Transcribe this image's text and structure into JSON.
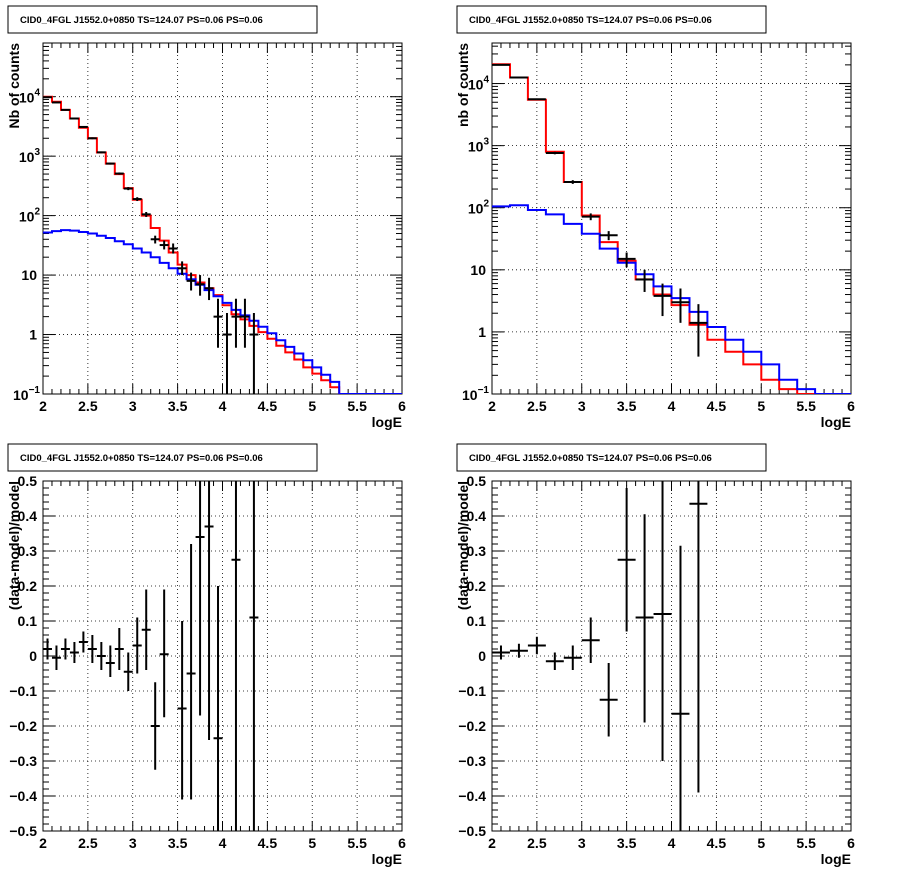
{
  "chart_data": [
    {
      "type": "histogram",
      "title": "CID0_4FGL J1552.0+0850 TS=124.07 PS=0.06 PS=0.06",
      "xlabel": "logE",
      "ylabel": "Nb of counts",
      "log_y": true,
      "xlim": [
        2,
        6
      ],
      "ylim": [
        0.1,
        80000
      ],
      "grid": true,
      "x_ticks": [
        "2",
        "2.5",
        "3",
        "3.5",
        "4",
        "4.5",
        "5",
        "5.5",
        "6"
      ],
      "y_ticks": [
        {
          "v": 0.1,
          "base": "10",
          "exp": "−1"
        },
        {
          "v": 1,
          "text": "1"
        },
        {
          "v": 10,
          "text": "10"
        },
        {
          "v": 100,
          "base": "10",
          "exp": "2"
        },
        {
          "v": 1000,
          "base": "10",
          "exp": "3"
        },
        {
          "v": 10000,
          "base": "10",
          "exp": "4"
        }
      ],
      "bin_width": 0.1,
      "series": [
        {
          "color": "#ff0000",
          "x0": 2.0,
          "values": [
            10000,
            8200,
            6000,
            4300,
            3000,
            2000,
            1150,
            750,
            500,
            290,
            185,
            100,
            62,
            38,
            24,
            15,
            10,
            7.5,
            6,
            4.6,
            3.1,
            2.2,
            1.8,
            1.4,
            1.1,
            0.85,
            0.65,
            0.5,
            0.38,
            0.28,
            0.22,
            0.17,
            0.13,
            0.1,
            0.1,
            0.1,
            0.1,
            0.1,
            0.1,
            0.1
          ]
        },
        {
          "color": "#0000ff",
          "x0": 2.0,
          "values": [
            52,
            55,
            57,
            56,
            53,
            50,
            46,
            42,
            37,
            33,
            28,
            24,
            20,
            16,
            13,
            10.5,
            8.5,
            6.9,
            5.6,
            4.4,
            3.4,
            2.6,
            2.1,
            1.7,
            1.35,
            1.05,
            0.8,
            0.62,
            0.48,
            0.37,
            0.28,
            0.21,
            0.16,
            0.1,
            0.1,
            0.1,
            0.1,
            0.1,
            0.1,
            0.1
          ]
        }
      ],
      "points": [
        {
          "x": 2.05,
          "y": 9800,
          "ylo": 9600,
          "yhi": 10000
        },
        {
          "x": 2.15,
          "y": 8000,
          "ylo": 7850,
          "yhi": 8150
        },
        {
          "x": 2.25,
          "y": 6000,
          "ylo": 5850,
          "yhi": 6150
        },
        {
          "x": 2.35,
          "y": 4300,
          "ylo": 4200,
          "yhi": 4400
        },
        {
          "x": 2.45,
          "y": 3100,
          "ylo": 3000,
          "yhi": 3200
        },
        {
          "x": 2.55,
          "y": 2000,
          "ylo": 1930,
          "yhi": 2070
        },
        {
          "x": 2.65,
          "y": 1160,
          "ylo": 1120,
          "yhi": 1200
        },
        {
          "x": 2.75,
          "y": 750,
          "ylo": 722,
          "yhi": 778
        },
        {
          "x": 2.85,
          "y": 510,
          "ylo": 488,
          "yhi": 532
        },
        {
          "x": 2.95,
          "y": 285,
          "ylo": 268,
          "yhi": 302
        },
        {
          "x": 3.05,
          "y": 190,
          "ylo": 176,
          "yhi": 204
        },
        {
          "x": 3.15,
          "y": 105,
          "ylo": 95,
          "yhi": 115
        },
        {
          "x": 3.25,
          "y": 40,
          "ylo": 34,
          "yhi": 46
        },
        {
          "x": 3.35,
          "y": 32,
          "ylo": 27,
          "yhi": 38
        },
        {
          "x": 3.45,
          "y": 28,
          "ylo": 23,
          "yhi": 34
        },
        {
          "x": 3.55,
          "y": 13,
          "ylo": 10,
          "yhi": 17
        },
        {
          "x": 3.65,
          "y": 8,
          "ylo": 5.5,
          "yhi": 11
        },
        {
          "x": 3.75,
          "y": 7,
          "ylo": 4.5,
          "yhi": 10
        },
        {
          "x": 3.85,
          "y": 6,
          "ylo": 3.8,
          "yhi": 9
        },
        {
          "x": 3.95,
          "y": 2,
          "ylo": 0.6,
          "yhi": 4
        },
        {
          "x": 4.05,
          "y": 1,
          "ylo": 0.1,
          "yhi": 2.3
        },
        {
          "x": 4.15,
          "y": 2,
          "ylo": 0.6,
          "yhi": 4
        },
        {
          "x": 4.25,
          "y": 2,
          "ylo": 0.6,
          "yhi": 4
        },
        {
          "x": 4.35,
          "y": 1,
          "ylo": 0.1,
          "yhi": 2.3
        }
      ]
    },
    {
      "type": "histogram",
      "title": "CID0_4FGL J1552.0+0850 TS=124.07 PS=0.06 PS=0.06",
      "xlabel": "logE",
      "ylabel": "nb of counts",
      "log_y": true,
      "xlim": [
        2,
        6
      ],
      "ylim": [
        0.1,
        45000
      ],
      "grid": true,
      "x_ticks": [
        "2",
        "2.5",
        "3",
        "3.5",
        "4",
        "4.5",
        "5",
        "5.5",
        "6"
      ],
      "y_ticks": [
        {
          "v": 0.1,
          "base": "10",
          "exp": "−1"
        },
        {
          "v": 1,
          "text": "1"
        },
        {
          "v": 10,
          "text": "10"
        },
        {
          "v": 100,
          "base": "10",
          "exp": "2"
        },
        {
          "v": 1000,
          "base": "10",
          "exp": "3"
        },
        {
          "v": 10000,
          "base": "10",
          "exp": "4"
        }
      ],
      "bin_width": 0.2,
      "series": [
        {
          "color": "#ff0000",
          "x0": 2.0,
          "values": [
            20500,
            12500,
            5500,
            800,
            260,
            75,
            28,
            14,
            7,
            4,
            2.7,
            1.3,
            0.75,
            0.48,
            0.3,
            0.17,
            0.12,
            0.1,
            0.1,
            0.1
          ]
        },
        {
          "color": "#0000ff",
          "x0": 2.0,
          "values": [
            105,
            110,
            92,
            78,
            55,
            38,
            22,
            13,
            8.5,
            5.4,
            3.5,
            2.1,
            1.2,
            0.75,
            0.48,
            0.3,
            0.17,
            0.12,
            0.1,
            0.1
          ]
        }
      ],
      "points": [
        {
          "x": 2.1,
          "y": 20000,
          "ylo": 19800,
          "yhi": 20200
        },
        {
          "x": 2.3,
          "y": 12500,
          "ylo": 12350,
          "yhi": 12650
        },
        {
          "x": 2.5,
          "y": 5600,
          "ylo": 5480,
          "yhi": 5720
        },
        {
          "x": 2.7,
          "y": 760,
          "ylo": 725,
          "yhi": 795
        },
        {
          "x": 2.9,
          "y": 260,
          "ylo": 242,
          "yhi": 278
        },
        {
          "x": 3.1,
          "y": 72,
          "ylo": 63,
          "yhi": 81
        },
        {
          "x": 3.3,
          "y": 36,
          "ylo": 30,
          "yhi": 42
        },
        {
          "x": 3.5,
          "y": 15,
          "ylo": 11,
          "yhi": 19
        },
        {
          "x": 3.7,
          "y": 7,
          "ylo": 4.4,
          "yhi": 10
        },
        {
          "x": 3.9,
          "y": 3.8,
          "ylo": 1.8,
          "yhi": 6
        },
        {
          "x": 4.1,
          "y": 3,
          "ylo": 1.4,
          "yhi": 5
        },
        {
          "x": 4.3,
          "y": 1.4,
          "ylo": 0.4,
          "yhi": 2.8
        }
      ]
    },
    {
      "type": "scatter",
      "title": "CID0_4FGL J1552.0+0850 TS=124.07 PS=0.06 PS=0.06",
      "xlabel": "logE",
      "ylabel": "(data-model)/model",
      "log_y": false,
      "xlim": [
        2,
        6
      ],
      "ylim": [
        -0.5,
        0.5
      ],
      "grid": true,
      "x_ticks": [
        "2",
        "2.5",
        "3",
        "3.5",
        "4",
        "4.5",
        "5",
        "5.5",
        "6"
      ],
      "y_ticks": [
        {
          "v": -0.5,
          "text": "−0.5"
        },
        {
          "v": -0.4,
          "text": "−0.4"
        },
        {
          "v": -0.3,
          "text": "−0.3"
        },
        {
          "v": -0.2,
          "text": "−0.2"
        },
        {
          "v": -0.1,
          "text": "−0.1"
        },
        {
          "v": 0,
          "text": "0"
        },
        {
          "v": 0.1,
          "text": "0.1"
        },
        {
          "v": 0.2,
          "text": "0.2"
        },
        {
          "v": 0.3,
          "text": "0.3"
        },
        {
          "v": 0.4,
          "text": "0.4"
        },
        {
          "v": 0.5,
          "text": "0.5"
        }
      ],
      "xerr": 0.05,
      "points": [
        {
          "x": 2.05,
          "y": 0.02,
          "ylo": -0.01,
          "yhi": 0.05
        },
        {
          "x": 2.15,
          "y": -0.005,
          "ylo": -0.04,
          "yhi": 0.03
        },
        {
          "x": 2.25,
          "y": 0.02,
          "ylo": -0.01,
          "yhi": 0.05
        },
        {
          "x": 2.35,
          "y": 0.01,
          "ylo": -0.02,
          "yhi": 0.04
        },
        {
          "x": 2.45,
          "y": 0.04,
          "ylo": 0.01,
          "yhi": 0.07
        },
        {
          "x": 2.55,
          "y": 0.02,
          "ylo": -0.02,
          "yhi": 0.06
        },
        {
          "x": 2.65,
          "y": 0.0,
          "ylo": -0.04,
          "yhi": 0.04
        },
        {
          "x": 2.75,
          "y": -0.02,
          "ylo": -0.06,
          "yhi": 0.03
        },
        {
          "x": 2.85,
          "y": 0.02,
          "ylo": -0.04,
          "yhi": 0.08
        },
        {
          "x": 2.95,
          "y": -0.045,
          "ylo": -0.1,
          "yhi": 0.01
        },
        {
          "x": 3.05,
          "y": 0.03,
          "ylo": -0.05,
          "yhi": 0.11
        },
        {
          "x": 3.15,
          "y": 0.075,
          "ylo": -0.04,
          "yhi": 0.19
        },
        {
          "x": 3.25,
          "y": -0.2,
          "ylo": -0.325,
          "yhi": -0.075
        },
        {
          "x": 3.35,
          "y": 0.005,
          "ylo": -0.175,
          "yhi": 0.19
        },
        {
          "x": 3.55,
          "y": -0.15,
          "ylo": -0.41,
          "yhi": 0.1
        },
        {
          "x": 3.65,
          "y": -0.05,
          "ylo": -0.41,
          "yhi": 0.32
        },
        {
          "x": 3.75,
          "y": 0.34,
          "ylo": -0.17,
          "yhi": 0.5
        },
        {
          "x": 3.85,
          "y": 0.37,
          "ylo": -0.24,
          "yhi": 0.5
        },
        {
          "x": 3.95,
          "y": -0.235,
          "ylo": -0.5,
          "yhi": 0.2
        },
        {
          "x": 4.15,
          "y": 0.275,
          "ylo": -0.5,
          "yhi": 0.5
        },
        {
          "x": 4.35,
          "y": 0.11,
          "ylo": -0.5,
          "yhi": 0.5
        }
      ]
    },
    {
      "type": "scatter",
      "title": "CID0_4FGL J1552.0+0850 TS=124.07 PS=0.06 PS=0.06",
      "xlabel": "logE",
      "ylabel": "(data-model)/model",
      "log_y": false,
      "xlim": [
        2,
        6
      ],
      "ylim": [
        -0.5,
        0.5
      ],
      "grid": true,
      "x_ticks": [
        "2",
        "2.5",
        "3",
        "3.5",
        "4",
        "4.5",
        "5",
        "5.5",
        "6"
      ],
      "y_ticks": [
        {
          "v": -0.5,
          "text": "−0.5"
        },
        {
          "v": -0.4,
          "text": "−0.4"
        },
        {
          "v": -0.3,
          "text": "−0.3"
        },
        {
          "v": -0.2,
          "text": "−0.2"
        },
        {
          "v": -0.1,
          "text": "−0.1"
        },
        {
          "v": 0,
          "text": "0"
        },
        {
          "v": 0.1,
          "text": "0.1"
        },
        {
          "v": 0.2,
          "text": "0.2"
        },
        {
          "v": 0.3,
          "text": "0.3"
        },
        {
          "v": 0.4,
          "text": "0.4"
        },
        {
          "v": 0.5,
          "text": "0.5"
        }
      ],
      "xerr": 0.1,
      "points": [
        {
          "x": 2.1,
          "y": 0.01,
          "ylo": -0.01,
          "yhi": 0.03
        },
        {
          "x": 2.3,
          "y": 0.015,
          "ylo": -0.005,
          "yhi": 0.035
        },
        {
          "x": 2.5,
          "y": 0.03,
          "ylo": 0.005,
          "yhi": 0.055
        },
        {
          "x": 2.7,
          "y": -0.015,
          "ylo": -0.04,
          "yhi": 0.01
        },
        {
          "x": 2.9,
          "y": -0.005,
          "ylo": -0.04,
          "yhi": 0.03
        },
        {
          "x": 3.1,
          "y": 0.045,
          "ylo": -0.02,
          "yhi": 0.11
        },
        {
          "x": 3.3,
          "y": -0.125,
          "ylo": -0.23,
          "yhi": -0.02
        },
        {
          "x": 3.5,
          "y": 0.275,
          "ylo": 0.07,
          "yhi": 0.48
        },
        {
          "x": 3.7,
          "y": 0.11,
          "ylo": -0.19,
          "yhi": 0.405
        },
        {
          "x": 3.9,
          "y": 0.12,
          "ylo": -0.3,
          "yhi": 0.5
        },
        {
          "x": 4.1,
          "y": -0.165,
          "ylo": -0.5,
          "yhi": 0.315
        },
        {
          "x": 4.3,
          "y": 0.435,
          "ylo": -0.39,
          "yhi": 0.5
        }
      ]
    }
  ]
}
